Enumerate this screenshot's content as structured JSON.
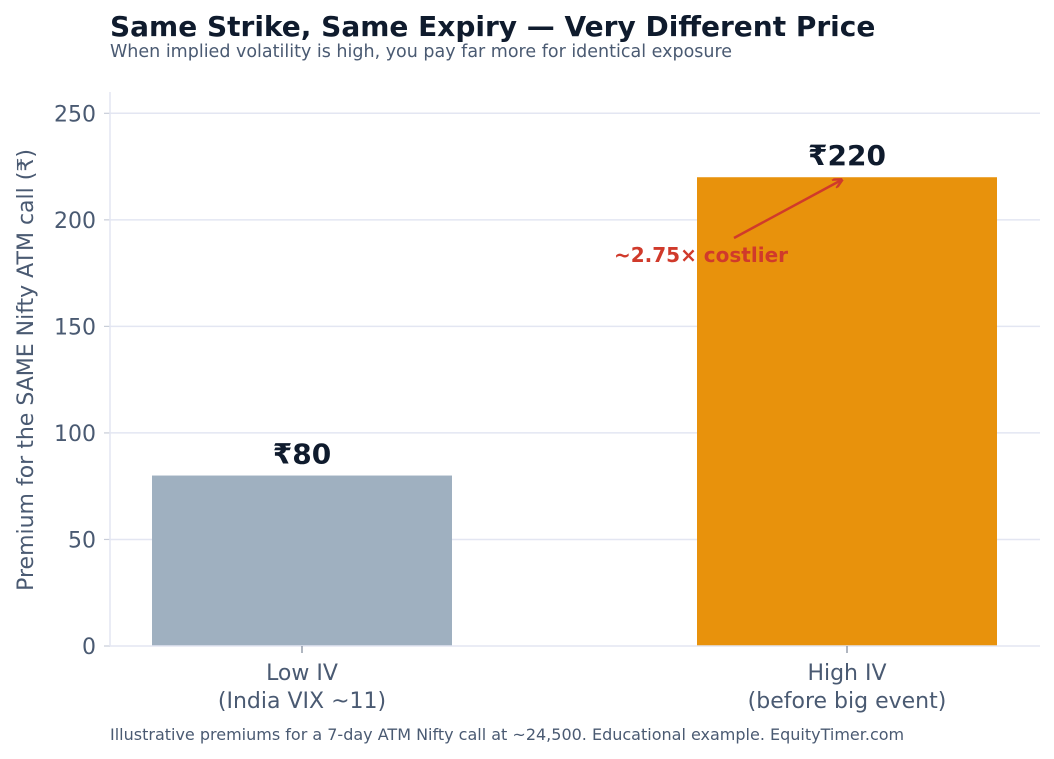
{
  "chart_data": {
    "type": "bar",
    "title": "Same Strike, Same Expiry — Very Different Price",
    "subtitle": "When implied volatility is high, you pay far more for identical exposure",
    "ylabel": "Premium for the SAME Nifty ATM call (₹)",
    "xlabel": "",
    "ylim": [
      0,
      260
    ],
    "yticks": [
      0,
      50,
      100,
      150,
      200,
      250
    ],
    "grid": true,
    "categories": [
      [
        "Low IV",
        "(India VIX ~11)"
      ],
      [
        "High IV",
        "(before big event)"
      ]
    ],
    "values": [
      80,
      220
    ],
    "data_labels": [
      "₹80",
      "₹220"
    ],
    "bar_colors": [
      "#9fb0c0",
      "#e8920c"
    ],
    "annotation": {
      "text": "~2.75× costlier",
      "color": "#d03a2b",
      "points_to_category": "High IV",
      "points_to_value": 220
    },
    "caption": "Illustrative premiums for a 7-day ATM Nifty call at ~24,500. Educational example. EquityTimer.com"
  }
}
